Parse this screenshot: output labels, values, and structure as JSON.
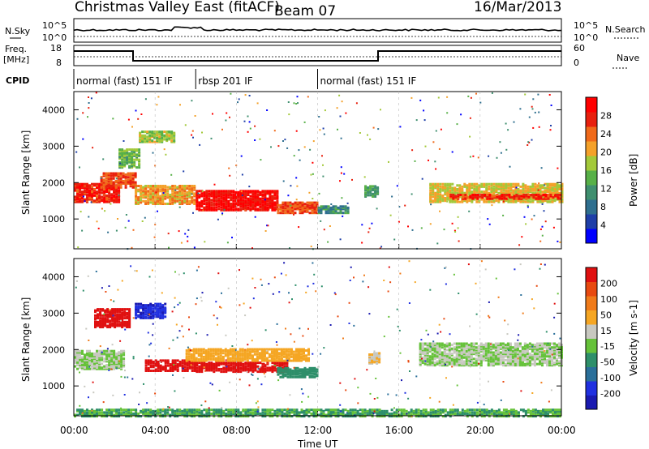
{
  "header": {
    "station": "Christmas Valley East (fitACF)",
    "beam": "Beam 07",
    "date": "16/Mar/2013"
  },
  "left_labels": {
    "nsky": "N.Sky",
    "nsky_top": "10^5",
    "nsky_bottom": "10^0",
    "freq": "Freq.",
    "freq_unit": "[MHz]",
    "freq_top": "18",
    "freq_bottom": "8",
    "cpid": "CPID"
  },
  "right_labels": {
    "nsky_top": "10^5",
    "nsky_bottom": "10^0",
    "nsearch": "N.Search",
    "nave_top": "60",
    "nave_bottom": "0",
    "nave": "Nave"
  },
  "cpid_segments": [
    {
      "label": "normal (fast) 151 IF",
      "start_hour": 0
    },
    {
      "label": "rbsp 201 IF",
      "start_hour": 6
    },
    {
      "label": "normal (fast) 151 IF",
      "start_hour": 12
    }
  ],
  "x_axis": {
    "label": "Time UT",
    "ticks": [
      "00:00",
      "04:00",
      "08:00",
      "12:00",
      "16:00",
      "20:00",
      "00:00"
    ]
  },
  "power_colorbar": {
    "label": "Power [dB]",
    "ticks": [
      "4",
      "8",
      "12",
      "16",
      "20",
      "24",
      "28"
    ],
    "colors": [
      "#0000ff",
      "#1f3fa8",
      "#2f6f8f",
      "#3f8f6f",
      "#57b047",
      "#a3c93a",
      "#f4a12a",
      "#f06a1a",
      "#e8200e",
      "#ff0000"
    ]
  },
  "velocity_colorbar": {
    "label": "Velocity [m s-1]",
    "ticks": [
      "200",
      "100",
      "50",
      "15",
      "-15",
      "-50",
      "-100",
      "-200"
    ],
    "colors": [
      "#1a1ab0",
      "#2030e0",
      "#2a6f9a",
      "#2e8f6a",
      "#66c23a",
      "#c8c8c0",
      "#f5a623",
      "#f07b1a",
      "#e84a10",
      "#e01010"
    ]
  },
  "range_axis": {
    "label": "Slant Range [km]",
    "ticks": [
      "1000",
      "2000",
      "3000",
      "4000"
    ]
  },
  "chart_data": [
    {
      "type": "heatmap",
      "title": "Power",
      "xlabel": "Time UT",
      "ylabel": "Slant Range [km]",
      "xlim": [
        0,
        24
      ],
      "ylim": [
        180,
        4500
      ],
      "value_label": "Power [dB]",
      "value_range": [
        0,
        30
      ],
      "bands": [
        {
          "t0": 0.0,
          "t1": 2.2,
          "center": 1750,
          "width": 500,
          "value": 26
        },
        {
          "t0": 1.3,
          "t1": 3.0,
          "center": 2100,
          "width": 400,
          "value": 24
        },
        {
          "t0": 2.2,
          "t1": 3.2,
          "center": 2700,
          "width": 500,
          "value": 14
        },
        {
          "t0": 3.0,
          "t1": 6.0,
          "center": 1700,
          "width": 500,
          "value": 20
        },
        {
          "t0": 3.2,
          "t1": 5.0,
          "center": 3300,
          "width": 300,
          "value": 16
        },
        {
          "t0": 6.0,
          "t1": 10.0,
          "center": 1550,
          "width": 550,
          "value": 28
        },
        {
          "t0": 10.0,
          "t1": 12.0,
          "center": 1350,
          "width": 300,
          "value": 24
        },
        {
          "t0": 12.0,
          "t1": 13.5,
          "center": 1300,
          "width": 200,
          "value": 10
        },
        {
          "t0": 14.3,
          "t1": 14.9,
          "center": 1800,
          "width": 300,
          "value": 12
        },
        {
          "t0": 17.5,
          "t1": 24.0,
          "center": 1750,
          "width": 500,
          "value": 18
        },
        {
          "t0": 18.5,
          "t1": 24.0,
          "center": 1650,
          "width": 120,
          "value": 26
        }
      ]
    },
    {
      "type": "heatmap",
      "title": "Velocity",
      "xlabel": "Time UT",
      "ylabel": "Slant Range [km]",
      "xlim": [
        0,
        24
      ],
      "ylim": [
        180,
        4500
      ],
      "value_label": "Velocity [m s-1]",
      "value_range": [
        -200,
        200
      ],
      "bands": [
        {
          "t0": 0.0,
          "t1": 2.5,
          "center": 1750,
          "width": 500,
          "value": 0
        },
        {
          "t0": 1.0,
          "t1": 2.8,
          "center": 2900,
          "width": 500,
          "value": 200
        },
        {
          "t0": 3.0,
          "t1": 4.5,
          "center": 3100,
          "width": 400,
          "value": -150
        },
        {
          "t0": 3.5,
          "t1": 6.0,
          "center": 1600,
          "width": 300,
          "value": 180
        },
        {
          "t0": 6.0,
          "t1": 10.5,
          "center": 1550,
          "width": 250,
          "value": 220
        },
        {
          "t0": 5.5,
          "t1": 11.5,
          "center": 1900,
          "width": 350,
          "value": 60
        },
        {
          "t0": 10.0,
          "t1": 12.0,
          "center": 1400,
          "width": 250,
          "value": -60
        },
        {
          "t0": 14.5,
          "t1": 15.0,
          "center": 1800,
          "width": 300,
          "value": 40
        },
        {
          "t0": 17.0,
          "t1": 24.0,
          "center": 1900,
          "width": 600,
          "value": 0
        },
        {
          "t0": 0.0,
          "t1": 24.0,
          "center": 300,
          "width": 200,
          "value": -40
        }
      ]
    }
  ]
}
